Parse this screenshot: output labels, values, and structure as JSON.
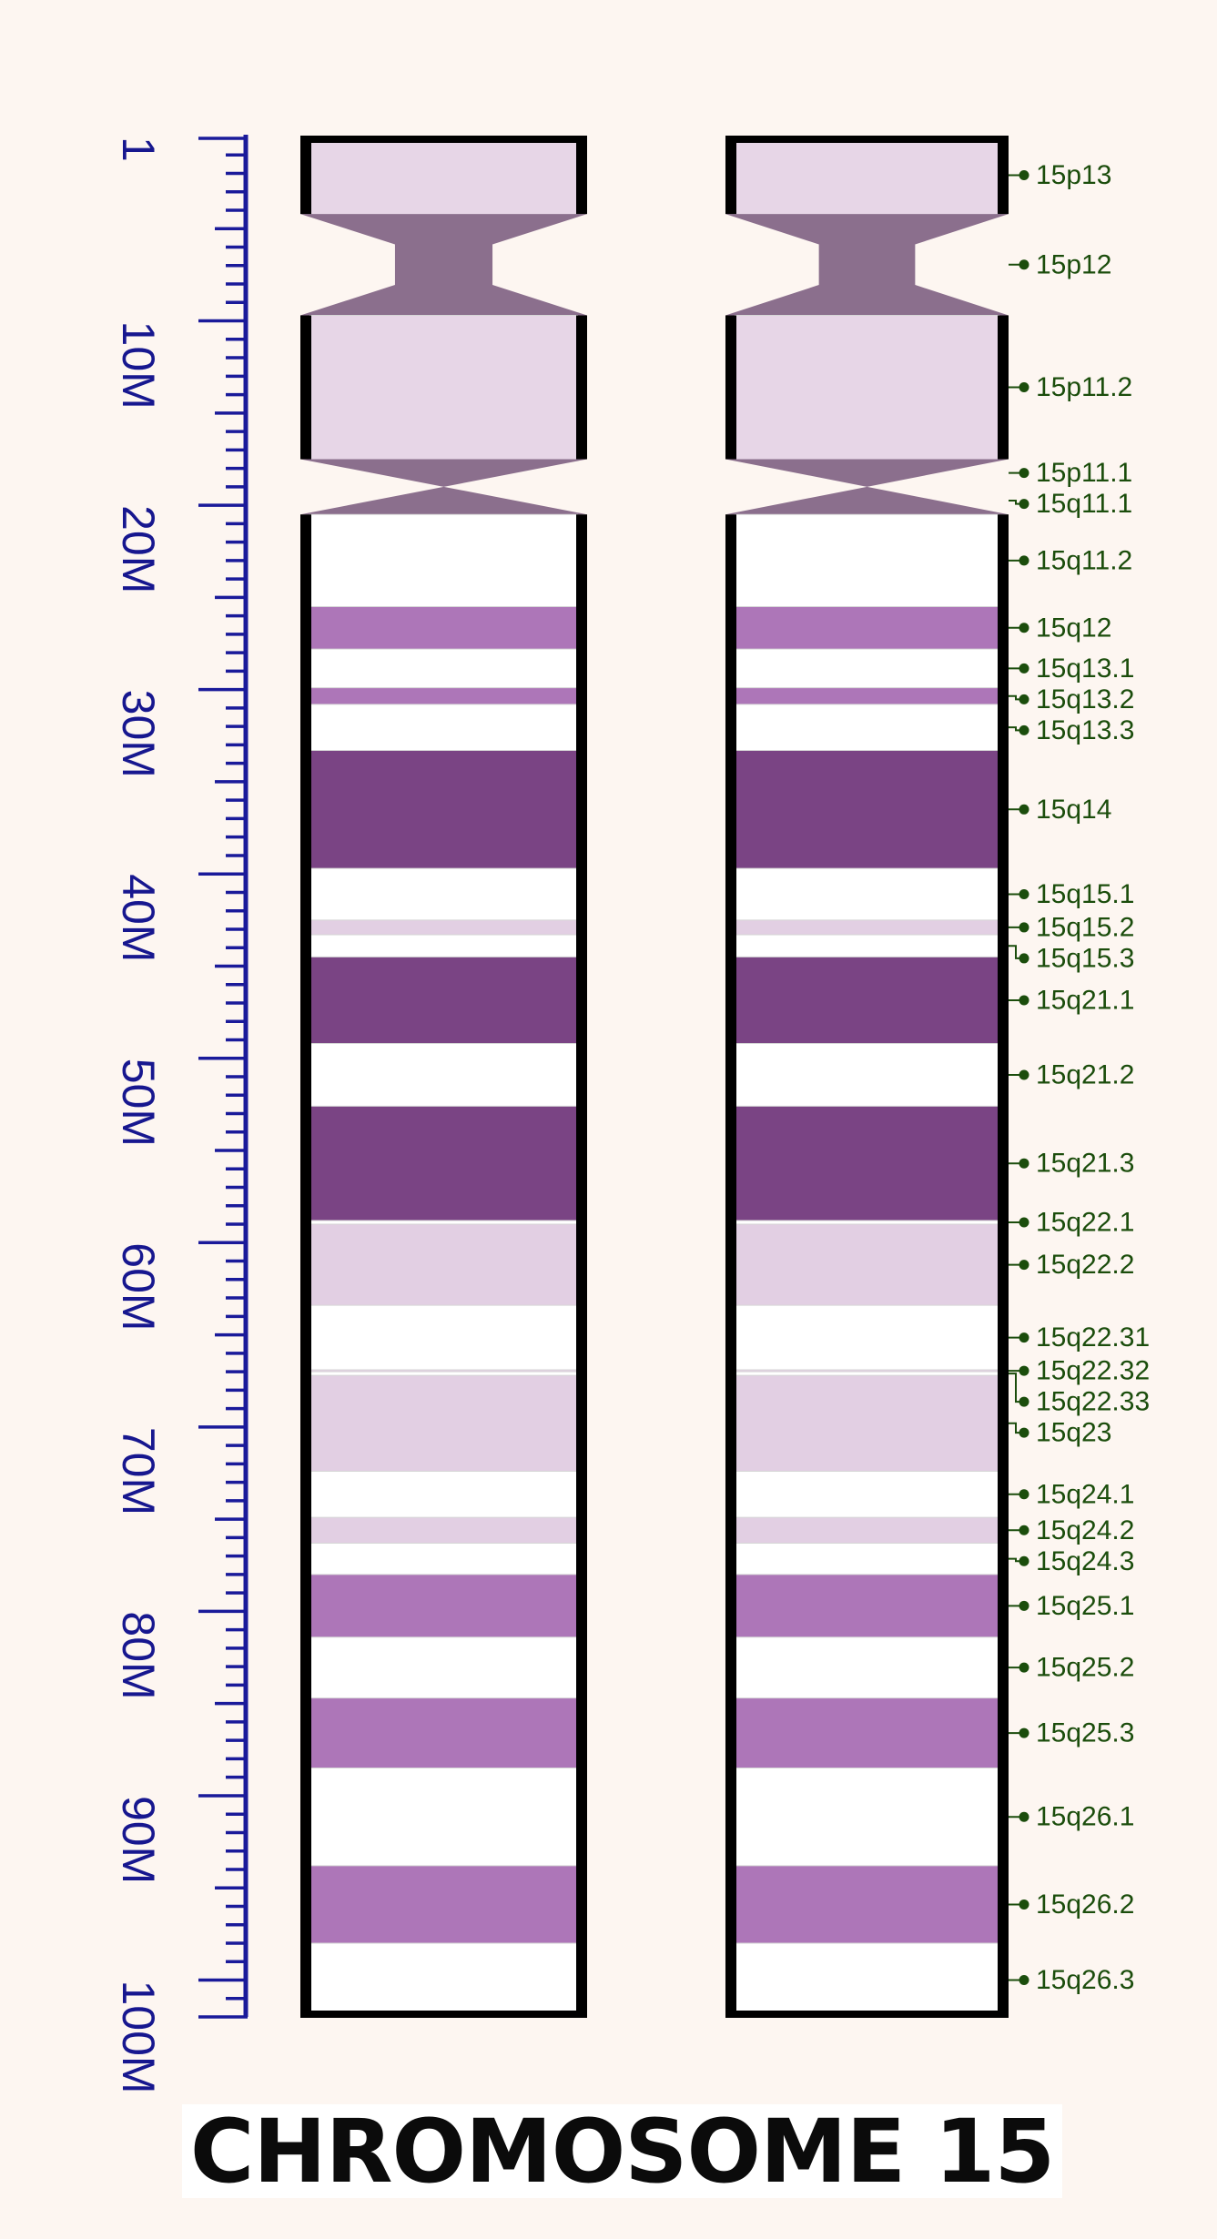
{
  "title": "CHROMOSOME 15",
  "colors": {
    "background": "#fdf6f1",
    "ruler": "#1a1a9a",
    "label": "#1b4d0c",
    "outline": "#000000",
    "gneg": "#ffffff",
    "gpos25": "#e2cfe3",
    "gpos50": "#ad76b8",
    "gpos100": "#7a4484",
    "acen": "#8b6f8d",
    "gvar": "#e7d6e7"
  },
  "ruler": {
    "min_mb": 0,
    "max_mb": 102,
    "major_step_mb": 10,
    "minor_step_mb": 1,
    "labels": [
      {
        "mb": 0.5,
        "text": "1"
      },
      {
        "mb": 10,
        "text": "10M"
      },
      {
        "mb": 20,
        "text": "20M"
      },
      {
        "mb": 30,
        "text": "30M"
      },
      {
        "mb": 40,
        "text": "40M"
      },
      {
        "mb": 50,
        "text": "50M"
      },
      {
        "mb": 60,
        "text": "60M"
      },
      {
        "mb": 70,
        "text": "70M"
      },
      {
        "mb": 80,
        "text": "80M"
      },
      {
        "mb": 90,
        "text": "90M"
      },
      {
        "mb": 100,
        "text": "100M"
      }
    ]
  },
  "bands": [
    {
      "name": "15p13",
      "start": 0,
      "end": 4.2,
      "stain": "gvar"
    },
    {
      "name": "15p12",
      "start": 4.2,
      "end": 9.7,
      "stain": "acen_stalk"
    },
    {
      "name": "15p11.2",
      "start": 9.7,
      "end": 17.5,
      "stain": "gvar"
    },
    {
      "name": "15p11.1",
      "start": 17.5,
      "end": 19.0,
      "stain": "acen_p"
    },
    {
      "name": "15q11.1",
      "start": 19.0,
      "end": 20.5,
      "stain": "acen_q"
    },
    {
      "name": "15q11.2",
      "start": 20.5,
      "end": 25.5,
      "stain": "gneg"
    },
    {
      "name": "15q12",
      "start": 25.5,
      "end": 27.8,
      "stain": "gpos50"
    },
    {
      "name": "15q13.1",
      "start": 27.8,
      "end": 29.9,
      "stain": "gneg"
    },
    {
      "name": "15q13.2",
      "start": 29.9,
      "end": 30.8,
      "stain": "gpos50"
    },
    {
      "name": "15q13.3",
      "start": 30.8,
      "end": 33.3,
      "stain": "gneg"
    },
    {
      "name": "15q14",
      "start": 33.3,
      "end": 39.7,
      "stain": "gpos100"
    },
    {
      "name": "15q15.1",
      "start": 39.7,
      "end": 42.5,
      "stain": "gneg"
    },
    {
      "name": "15q15.2",
      "start": 42.5,
      "end": 43.3,
      "stain": "gpos25"
    },
    {
      "name": "15q15.3",
      "start": 43.3,
      "end": 44.5,
      "stain": "gneg"
    },
    {
      "name": "15q21.1",
      "start": 44.5,
      "end": 49.2,
      "stain": "gpos100"
    },
    {
      "name": "15q21.2",
      "start": 49.2,
      "end": 52.6,
      "stain": "gneg"
    },
    {
      "name": "15q21.3",
      "start": 52.6,
      "end": 58.8,
      "stain": "gpos100"
    },
    {
      "name": "15q22.1",
      "start": 58.8,
      "end": 59.0,
      "stain": "gneg"
    },
    {
      "name": "15q22.2",
      "start": 59.0,
      "end": 63.4,
      "stain": "gpos25"
    },
    {
      "name": "15q22.31",
      "start": 63.4,
      "end": 66.9,
      "stain": "gneg"
    },
    {
      "name": "15q22.32",
      "start": 66.9,
      "end": 67.0,
      "stain": "gpos25"
    },
    {
      "name": "15q22.33",
      "start": 67.0,
      "end": 67.2,
      "stain": "gneg"
    },
    {
      "name": "15q23",
      "start": 67.2,
      "end": 72.4,
      "stain": "gpos25"
    },
    {
      "name": "15q24.1",
      "start": 72.4,
      "end": 74.9,
      "stain": "gneg"
    },
    {
      "name": "15q24.2",
      "start": 74.9,
      "end": 76.3,
      "stain": "gpos25"
    },
    {
      "name": "15q24.3",
      "start": 76.3,
      "end": 78.0,
      "stain": "gneg"
    },
    {
      "name": "15q25.1",
      "start": 78.0,
      "end": 81.4,
      "stain": "gpos50"
    },
    {
      "name": "15q25.2",
      "start": 81.4,
      "end": 84.7,
      "stain": "gneg"
    },
    {
      "name": "15q25.3",
      "start": 84.7,
      "end": 88.5,
      "stain": "gpos50"
    },
    {
      "name": "15q26.1",
      "start": 88.5,
      "end": 93.8,
      "stain": "gneg"
    },
    {
      "name": "15q26.2",
      "start": 93.8,
      "end": 98.0,
      "stain": "gpos50"
    },
    {
      "name": "15q26.3",
      "start": 98.0,
      "end": 102.0,
      "stain": "gneg"
    }
  ]
}
